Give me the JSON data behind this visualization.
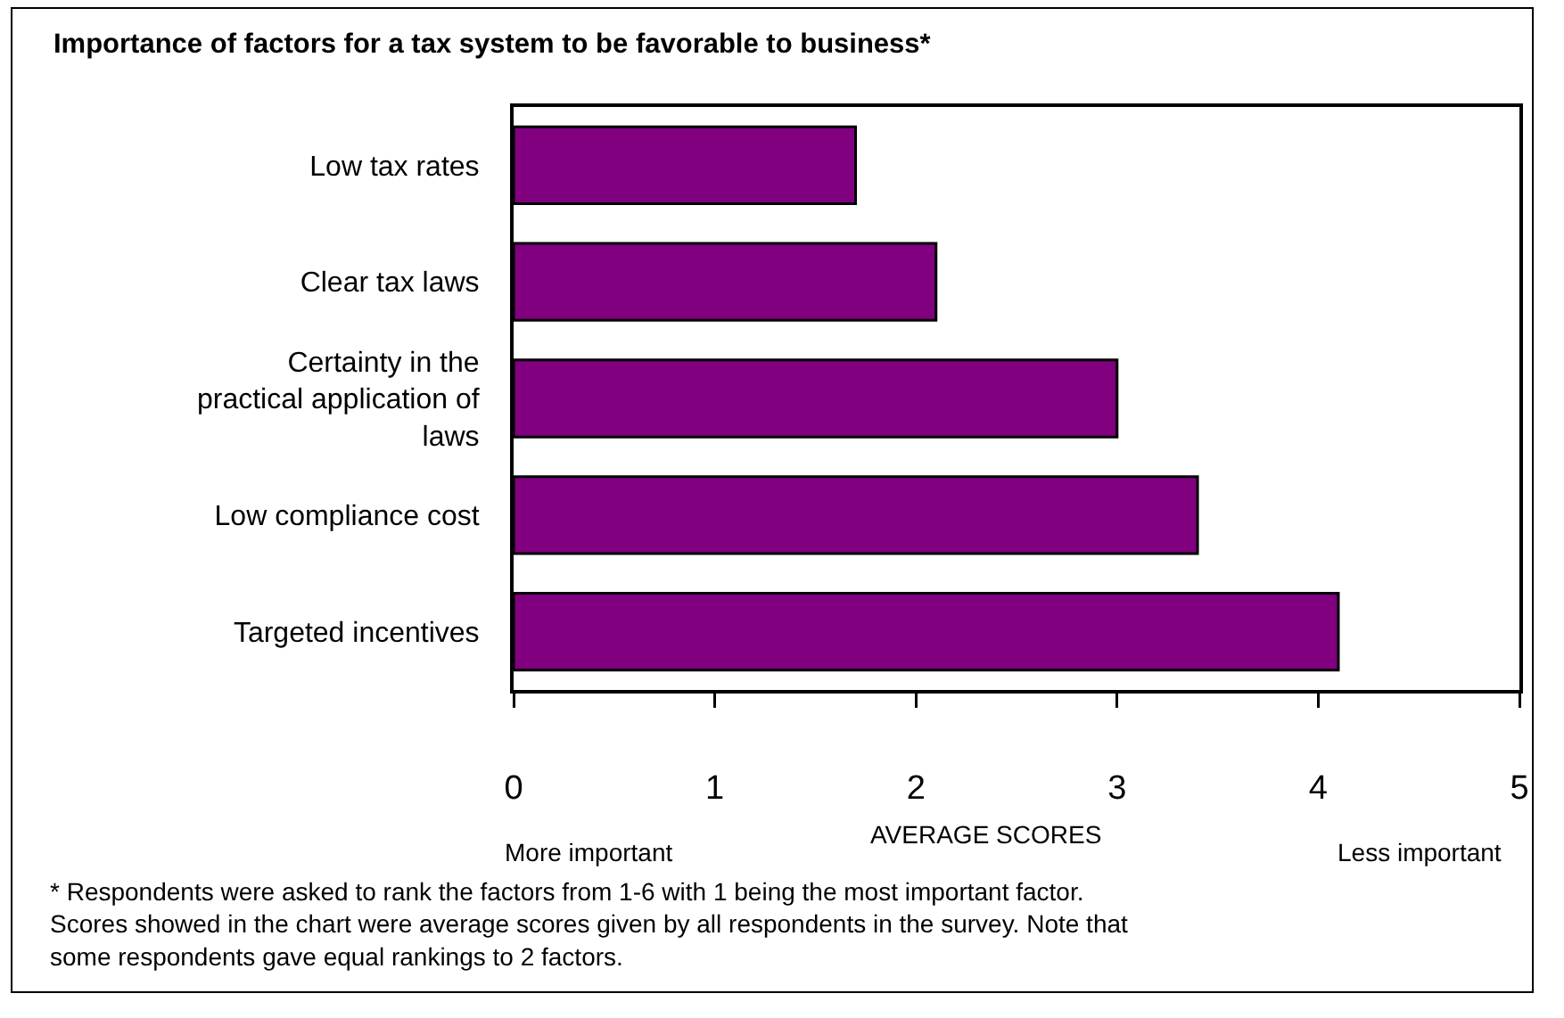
{
  "chart_data": {
    "type": "bar",
    "orientation": "horizontal",
    "title": "Importance of factors for a tax system to be favorable to business*",
    "categories": [
      "Low tax rates",
      "Clear tax laws",
      "Certainty in the practical application of laws",
      "Low compliance cost",
      "Targeted incentives"
    ],
    "values": [
      1.7,
      2.1,
      3.0,
      3.4,
      4.1
    ],
    "color": "#800080",
    "xlim": [
      0,
      5
    ],
    "xticks": [
      0,
      1,
      2,
      3,
      4,
      5
    ],
    "xlabel": "AVERAGE SCORES",
    "grid": false,
    "legend": false,
    "annotations": [
      "More important",
      "Less important",
      "* Respondents were asked to rank the factors from 1-6 with 1 being the most important factor.  Scores showed in the chart were average scores given by all respondents in the survey. Note that some respondents gave equal rankings to 2 factors."
    ]
  }
}
